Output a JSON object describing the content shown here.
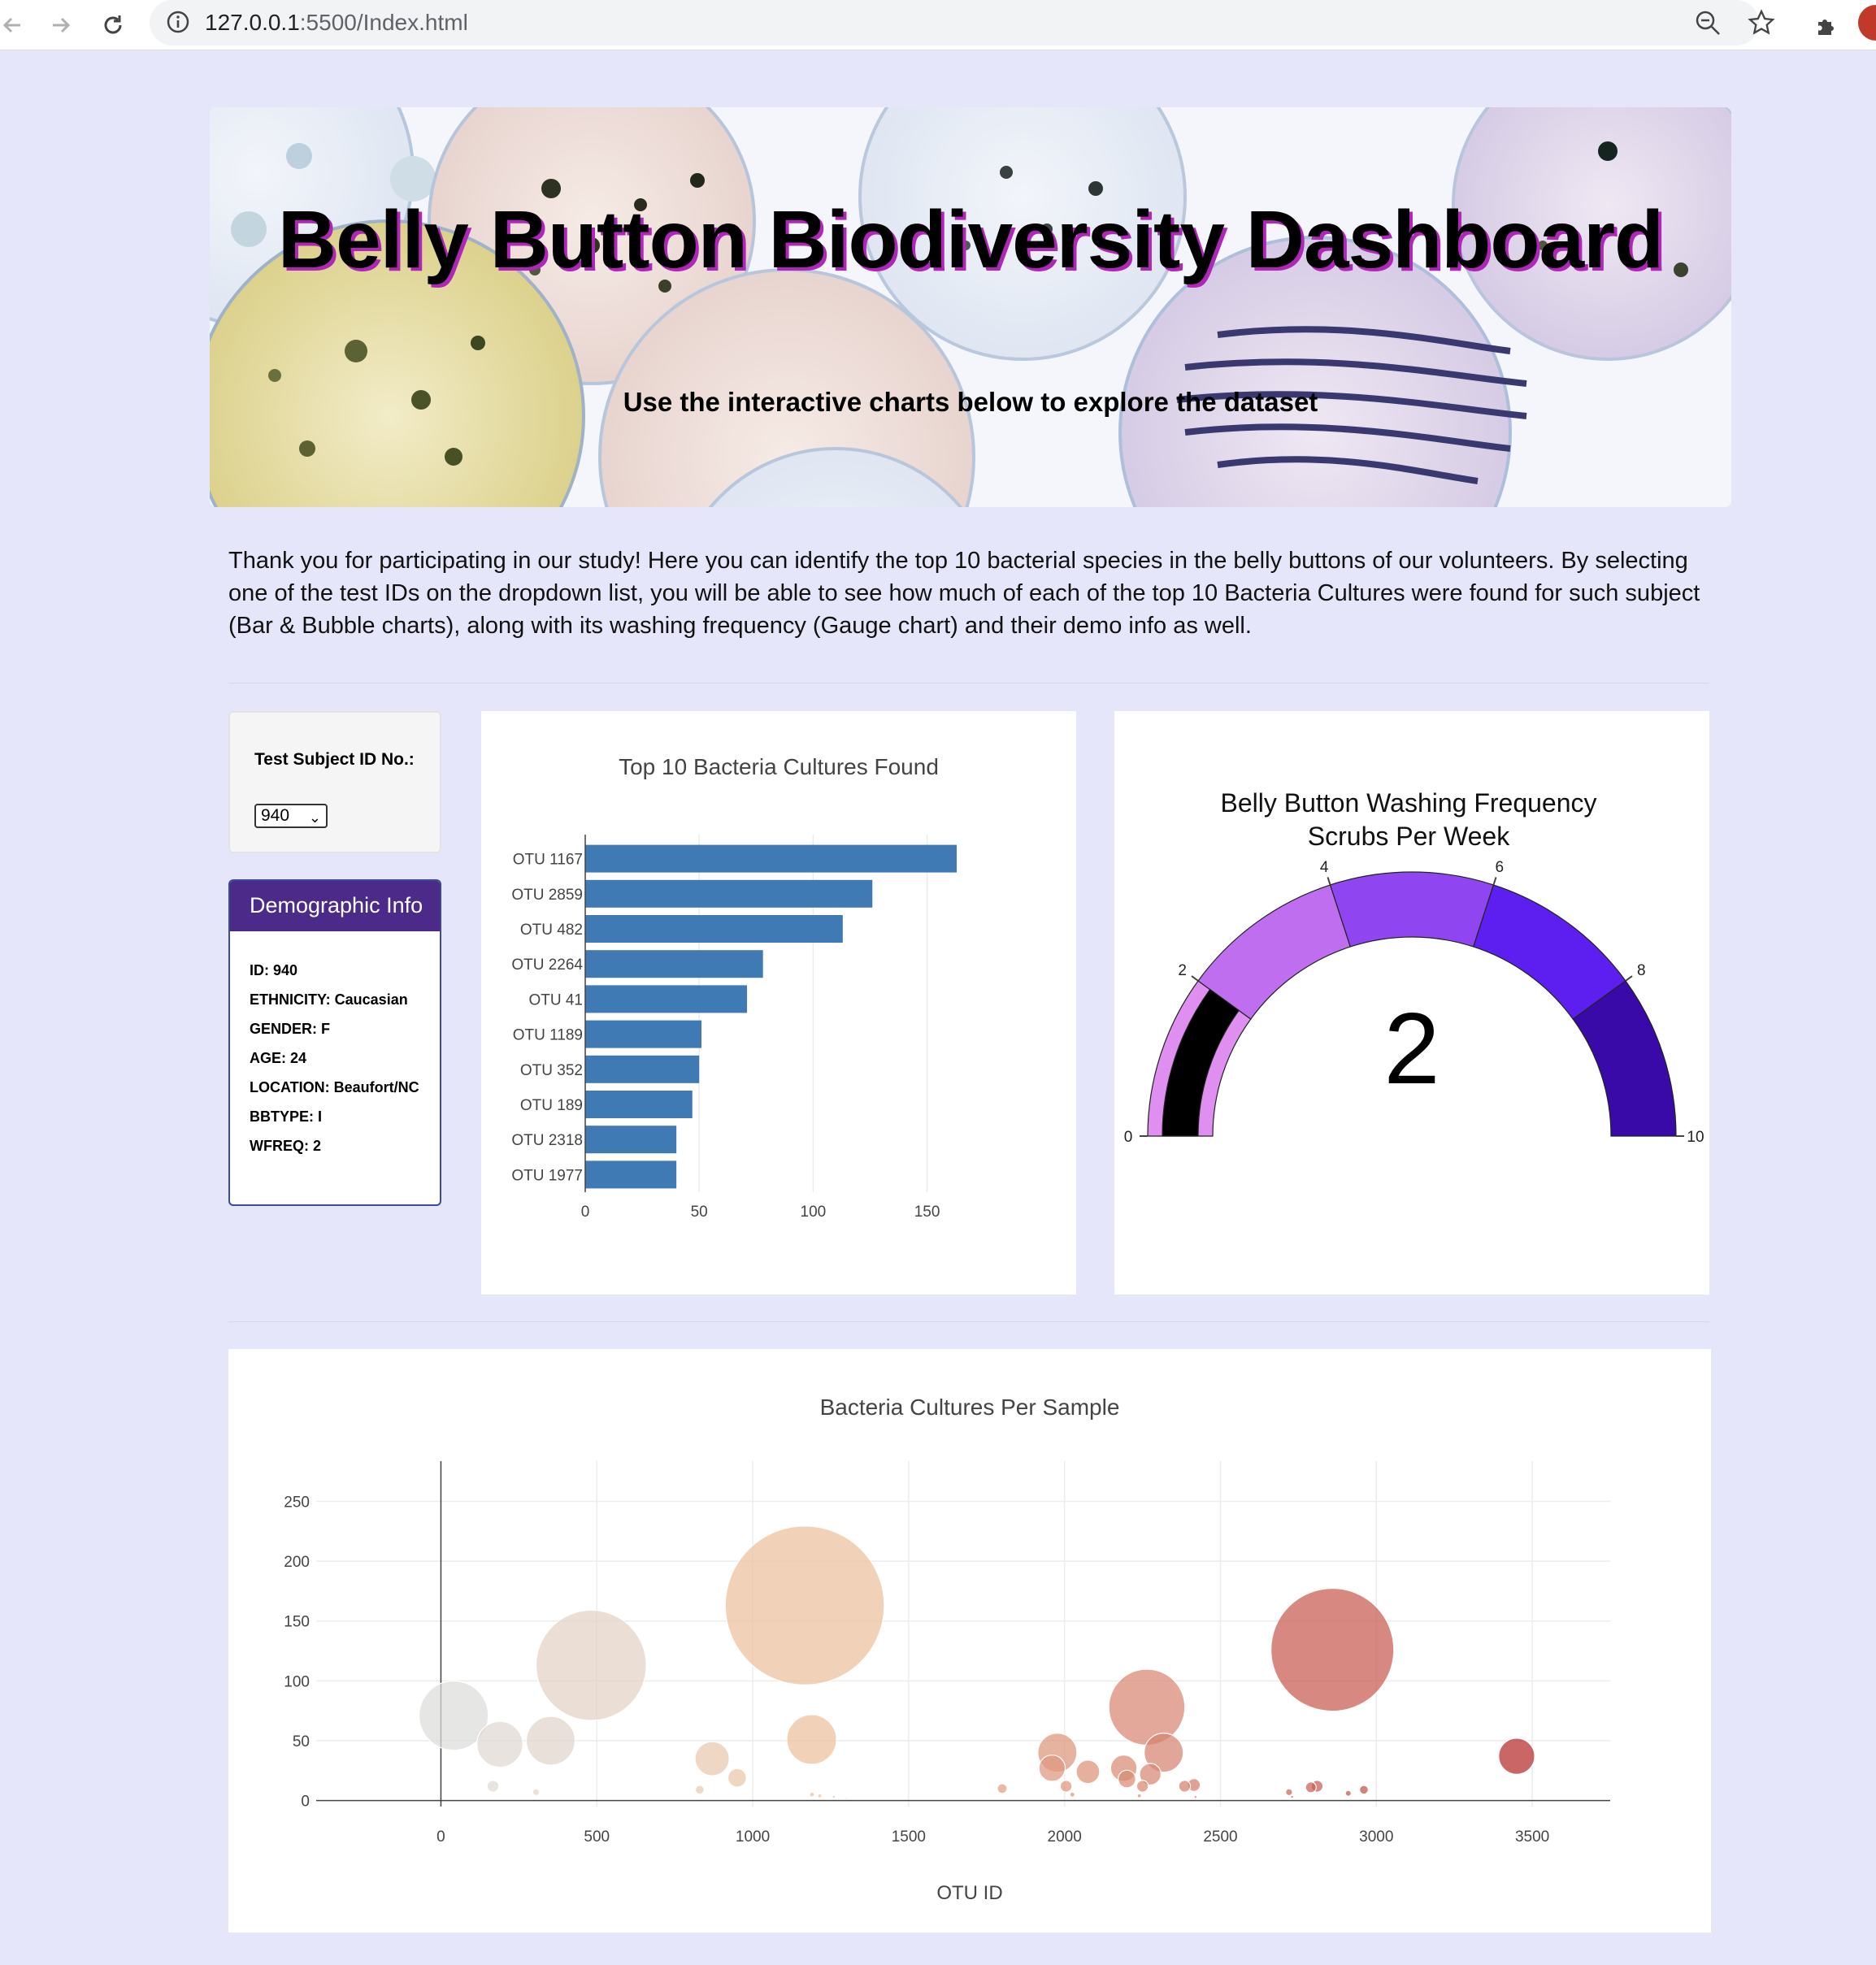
{
  "browser": {
    "url_host": "127.0.0.1",
    "url_rest": ":5500/Index.html"
  },
  "jumbotron": {
    "title": "Belly Button Biodiversity Dashboard",
    "subtitle": "Use the interactive charts below to explore the dataset"
  },
  "intro": "Thank you for participating in our study! Here you can identify the top 10 bacterial species in the belly buttons of our volunteers. By selecting one of the test IDs on the dropdown list, you will be able to see how much of each of the top 10 Bacteria Cultures were found for such subject (Bar & Bubble charts), along with its washing frequency (Gauge chart) and their demo info as well.",
  "selector": {
    "label": "Test Subject ID No.:",
    "selected": "940"
  },
  "demographic": {
    "title": "Demographic Info",
    "items": [
      "ID: 940",
      "ETHNICITY: Caucasian",
      "GENDER: F",
      "AGE: 24",
      "LOCATION: Beaufort/NC",
      "BBTYPE: I",
      "WFREQ: 2"
    ]
  },
  "colors": {
    "bar": "#3f7ab5",
    "gauge_steps": [
      "#df8ff0",
      "#bf6ef0",
      "#8f45f0",
      "#5d1ef0",
      "#3a0aa8"
    ],
    "gauge_needle": "#000000"
  },
  "chart_data": [
    {
      "type": "bar",
      "orientation": "horizontal",
      "title": "Top 10 Bacteria Cultures Found",
      "categories": [
        "OTU 1167",
        "OTU 2859",
        "OTU 482",
        "OTU 2264",
        "OTU 41",
        "OTU 1189",
        "OTU 352",
        "OTU 189",
        "OTU 2318",
        "OTU 1977"
      ],
      "values": [
        163,
        126,
        113,
        78,
        71,
        51,
        50,
        47,
        40,
        40
      ],
      "xlim": [
        0,
        163
      ],
      "xticks": [
        0,
        50,
        100,
        150
      ],
      "grid": true
    },
    {
      "type": "gauge",
      "title": "Belly Button Washing Frequency",
      "subtitle": "Scrubs Per Week",
      "value": 2,
      "range": [
        0,
        10
      ],
      "ticks": [
        0,
        2,
        4,
        6,
        8,
        10
      ],
      "steps": [
        [
          0,
          2
        ],
        [
          2,
          4
        ],
        [
          4,
          6
        ],
        [
          6,
          8
        ],
        [
          8,
          10
        ]
      ]
    },
    {
      "type": "scatter",
      "title": "Bacteria Cultures Per Sample",
      "xlabel": "OTU ID",
      "ylabel": "",
      "xlim": [
        -400,
        3750
      ],
      "ylim": [
        -5,
        270
      ],
      "xticks": [
        0,
        500,
        1000,
        1500,
        2000,
        2500,
        3000,
        3500
      ],
      "yticks": [
        0,
        50,
        100,
        150,
        200,
        250
      ],
      "marker_size": "sample value",
      "colorscale": "OTU ID",
      "grid": true,
      "points": [
        {
          "x": 41,
          "y": 71
        },
        {
          "x": 189,
          "y": 47
        },
        {
          "x": 352,
          "y": 50
        },
        {
          "x": 482,
          "y": 113
        },
        {
          "x": 1167,
          "y": 163
        },
        {
          "x": 1189,
          "y": 51
        },
        {
          "x": 870,
          "y": 35
        },
        {
          "x": 950,
          "y": 19
        },
        {
          "x": 1977,
          "y": 40
        },
        {
          "x": 2264,
          "y": 78
        },
        {
          "x": 2318,
          "y": 40
        },
        {
          "x": 2859,
          "y": 126
        },
        {
          "x": 3450,
          "y": 37
        },
        {
          "x": 1960,
          "y": 27
        },
        {
          "x": 2075,
          "y": 24
        },
        {
          "x": 2190,
          "y": 27
        },
        {
          "x": 2200,
          "y": 18
        },
        {
          "x": 2275,
          "y": 22
        },
        {
          "x": 2250,
          "y": 12
        },
        {
          "x": 2005,
          "y": 12
        },
        {
          "x": 2385,
          "y": 12
        },
        {
          "x": 2415,
          "y": 13
        },
        {
          "x": 2790,
          "y": 11
        },
        {
          "x": 2810,
          "y": 12
        },
        {
          "x": 2720,
          "y": 7
        },
        {
          "x": 2960,
          "y": 9
        },
        {
          "x": 2910,
          "y": 6
        },
        {
          "x": 1800,
          "y": 10
        },
        {
          "x": 167,
          "y": 12
        },
        {
          "x": 305,
          "y": 7
        },
        {
          "x": 830,
          "y": 9
        },
        {
          "x": 1190,
          "y": 5
        },
        {
          "x": 1215,
          "y": 4
        },
        {
          "x": 1260,
          "y": 3
        },
        {
          "x": 1300,
          "y": 2
        },
        {
          "x": 2025,
          "y": 5
        },
        {
          "x": 2240,
          "y": 4
        },
        {
          "x": 2420,
          "y": 3
        },
        {
          "x": 2730,
          "y": 3
        }
      ],
      "sizes": [
        71,
        47,
        50,
        113,
        163,
        51,
        35,
        19,
        40,
        78,
        40,
        126,
        37,
        27,
        24,
        27,
        18,
        22,
        12,
        12,
        12,
        13,
        11,
        12,
        7,
        9,
        6,
        10,
        12,
        7,
        9,
        5,
        4,
        3,
        2,
        5,
        4,
        3,
        3
      ]
    }
  ]
}
